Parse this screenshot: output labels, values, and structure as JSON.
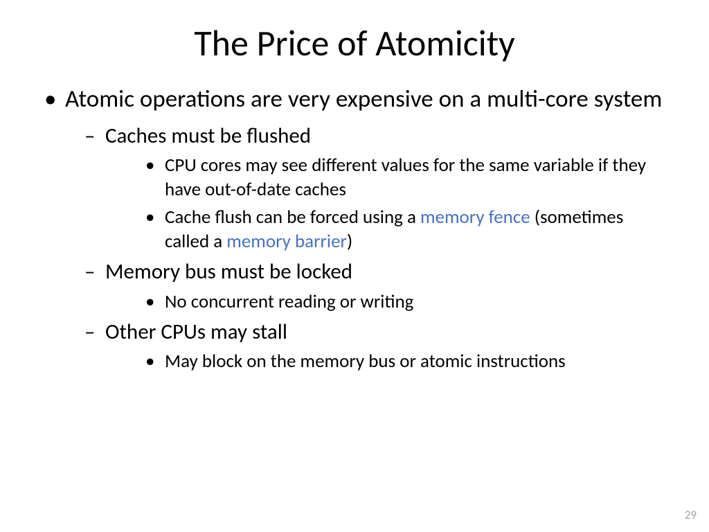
{
  "title": "The Price of Atomicity",
  "page_number": "29",
  "highlight_color": "#4472c4",
  "b1": "Atomic operations are very expensive on a multi-core system",
  "b2a": "Caches must be flushed",
  "b2a_i": "CPU cores may see different values for the same variable if they have out-of-date caches",
  "b2a_ii_pre": "Cache flush can be forced using a ",
  "b2a_ii_hl1": "memory fence",
  "b2a_ii_mid": " (sometimes called a ",
  "b2a_ii_hl2": "memory barrier",
  "b2a_ii_post": ")",
  "b2b": "Memory bus must be locked",
  "b2b_i": "No concurrent reading or writing",
  "b2c": "Other CPUs may stall",
  "b2c_i": "May block on the memory bus or atomic instructions"
}
